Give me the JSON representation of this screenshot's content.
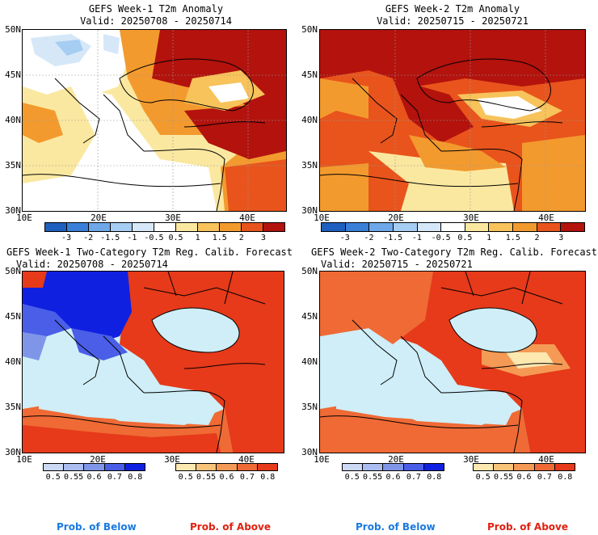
{
  "panels": [
    {
      "title": "GEFS Week-1 T2m Anomaly",
      "valid": "Valid: 20250708 - 20250714"
    },
    {
      "title": "GEFS Week-2 T2m Anomaly",
      "valid": "Valid: 20250715 - 20250721"
    },
    {
      "title": "GEFS Week-1 Two-Category T2m Reg. Calib. Forecast",
      "valid": "Valid: 20250708 - 20250714"
    },
    {
      "title": "GEFS Week-2 Two-Category T2m Reg. Calib. Forecast",
      "valid": "Valid: 20250715 - 20250721"
    }
  ],
  "lat_labels": [
    "50N",
    "45N",
    "40N",
    "35N",
    "30N"
  ],
  "lon_labels": [
    "10E",
    "20E",
    "30E",
    "40E"
  ],
  "anomaly_scale": {
    "labels": [
      "-3",
      "-2",
      "-1.5",
      "-1",
      "-0.5",
      "0.5",
      "1",
      "1.5",
      "2",
      "3"
    ],
    "colors": [
      "#1f5fbf",
      "#3a80d8",
      "#6fa8e8",
      "#a6cdf2",
      "#d6e8f8",
      "#ffffff",
      "#fbe8a0",
      "#f7c35a",
      "#f39a2e",
      "#e8541c",
      "#b3120d"
    ]
  },
  "below_scale": {
    "labels": [
      "0.5",
      "0.55",
      "0.6",
      "0.7",
      "0.8"
    ],
    "colors": [
      "#ccd9f5",
      "#aabcf0",
      "#7f96e8",
      "#4a5ee8",
      "#1020e0"
    ]
  },
  "above_scale": {
    "labels": [
      "0.5",
      "0.55",
      "0.6",
      "0.7",
      "0.8"
    ],
    "colors": [
      "#fde8b0",
      "#f9c47a",
      "#f59a55",
      "#ef6a35",
      "#e63a1a"
    ]
  },
  "legend": {
    "below": "Prob. of Below",
    "above": "Prob. of Above"
  },
  "colors": {
    "below": "#1a7ae0",
    "above": "#e02010",
    "sea": "#cfeef7"
  }
}
